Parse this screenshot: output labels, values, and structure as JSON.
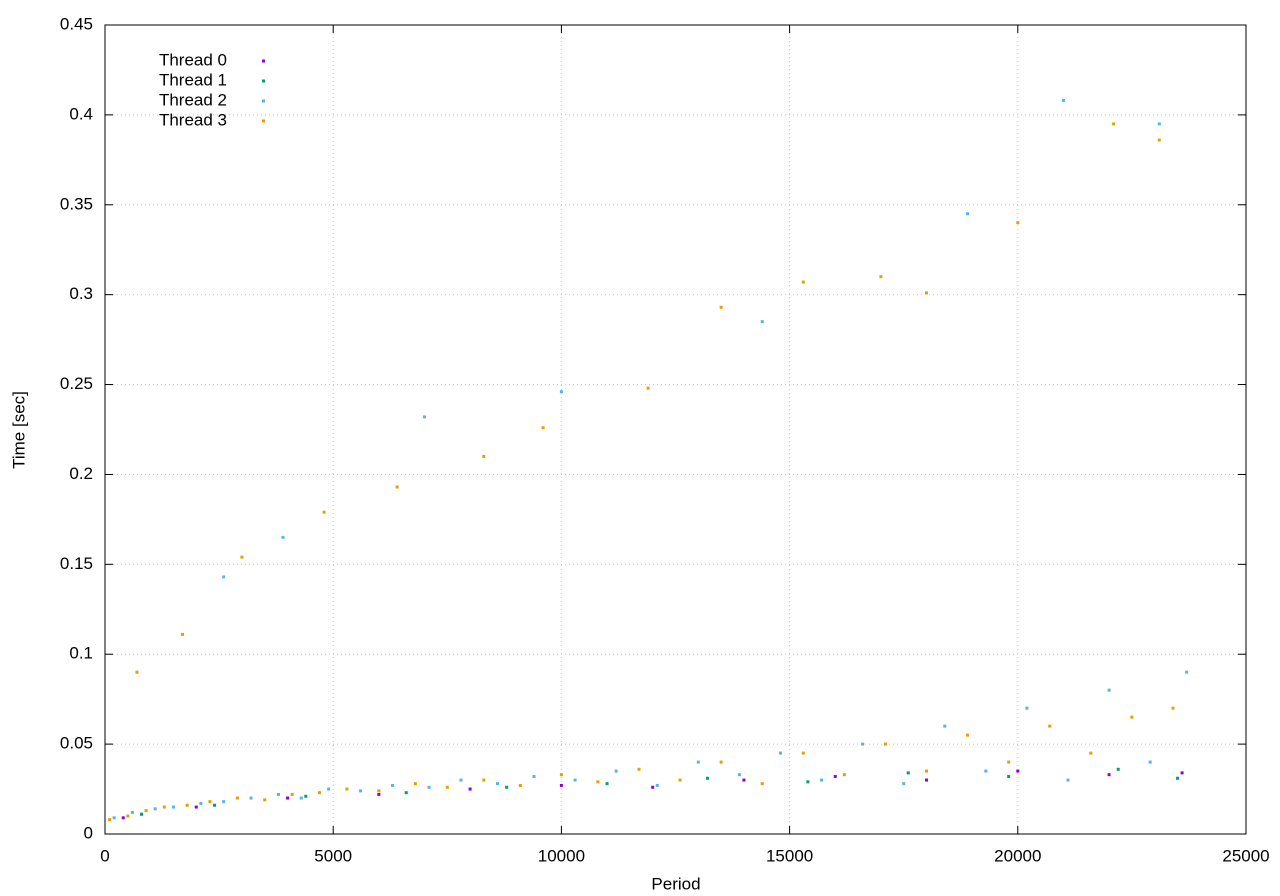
{
  "chart_data": {
    "type": "scatter",
    "x_label": "Period",
    "y_label": "Time [sec]",
    "xlim": [
      0,
      25000
    ],
    "xticks": [
      0,
      5000,
      10000,
      15000,
      20000,
      25000
    ],
    "ylim": [
      0,
      0.45
    ],
    "yticks": [
      0,
      0.05,
      0.1,
      0.15,
      0.2,
      0.25,
      0.3,
      0.35,
      0.4,
      0.45
    ],
    "grid": true,
    "legend": "top-left",
    "series": [
      {
        "name": "Thread 0",
        "color": "#9400d3",
        "x": [
          400,
          2000,
          4000,
          6000,
          8000,
          10000,
          12000,
          14000,
          16000,
          18000,
          20000,
          22000,
          23600
        ],
        "values": [
          0.009,
          0.015,
          0.02,
          0.022,
          0.025,
          0.027,
          0.026,
          0.03,
          0.032,
          0.03,
          0.035,
          0.033,
          0.034
        ]
      },
      {
        "name": "Thread 1",
        "color": "#009e73",
        "x": [
          800,
          2400,
          4400,
          6600,
          8800,
          11000,
          13200,
          15400,
          17600,
          19800,
          22200,
          23500
        ],
        "values": [
          0.011,
          0.016,
          0.021,
          0.023,
          0.026,
          0.028,
          0.031,
          0.029,
          0.034,
          0.032,
          0.036,
          0.031
        ]
      },
      {
        "name": "Thread 2",
        "color": "#56b4e9",
        "x": [
          200,
          600,
          1100,
          1500,
          2100,
          2600,
          3200,
          3800,
          4300,
          4900,
          5600,
          6300,
          7100,
          7800,
          8600,
          9400,
          10300,
          11200,
          12100,
          13000,
          13900,
          14800,
          15700,
          16600,
          17500,
          18400,
          19300,
          20200,
          21100,
          22000,
          22900,
          23700,
          2600,
          3900,
          7000,
          10000,
          14400,
          18900,
          21000,
          23100
        ],
        "values": [
          0.009,
          0.012,
          0.014,
          0.015,
          0.017,
          0.018,
          0.02,
          0.022,
          0.02,
          0.025,
          0.024,
          0.027,
          0.026,
          0.03,
          0.028,
          0.032,
          0.03,
          0.035,
          0.027,
          0.04,
          0.033,
          0.045,
          0.03,
          0.05,
          0.028,
          0.06,
          0.035,
          0.07,
          0.03,
          0.08,
          0.04,
          0.09,
          0.143,
          0.165,
          0.232,
          0.246,
          0.285,
          0.345,
          0.408,
          0.395
        ]
      },
      {
        "name": "Thread 3",
        "color": "#e69f00",
        "x": [
          100,
          500,
          900,
          1300,
          1800,
          2300,
          2900,
          3500,
          4100,
          4700,
          5300,
          6000,
          6800,
          7500,
          8300,
          9100,
          10000,
          10800,
          11700,
          12600,
          13500,
          14400,
          15300,
          16200,
          17100,
          18000,
          18900,
          19800,
          20700,
          21600,
          22500,
          23400,
          700,
          1700,
          3000,
          4800,
          6400,
          8300,
          9600,
          11900,
          13500,
          15300,
          17000,
          18000,
          20000,
          22100,
          23100
        ],
        "values": [
          0.008,
          0.01,
          0.013,
          0.015,
          0.016,
          0.018,
          0.02,
          0.019,
          0.022,
          0.023,
          0.025,
          0.024,
          0.028,
          0.026,
          0.03,
          0.027,
          0.033,
          0.029,
          0.036,
          0.03,
          0.04,
          0.028,
          0.045,
          0.033,
          0.05,
          0.035,
          0.055,
          0.04,
          0.06,
          0.045,
          0.065,
          0.07,
          0.09,
          0.111,
          0.154,
          0.179,
          0.193,
          0.21,
          0.226,
          0.248,
          0.293,
          0.307,
          0.31,
          0.301,
          0.34,
          0.395,
          0.386
        ]
      }
    ]
  }
}
